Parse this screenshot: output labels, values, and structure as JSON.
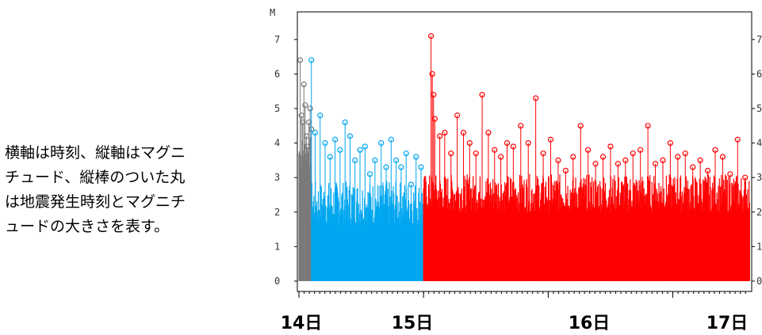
{
  "caption": "横軸は時刻、縦軸はマグニ\nチュード、縦棒のついた丸\nは地震発生時刻とマグニチ\nュードの大きさを表す。",
  "chart_data": {
    "type": "scatter",
    "title": "",
    "ylabel": "M",
    "xlabel": "",
    "ylim": [
      -0.3,
      7.8
    ],
    "yticks": [
      "0",
      "1",
      "2",
      "3",
      "4",
      "5",
      "6",
      "7"
    ],
    "right_yticks": [
      "0",
      "1",
      "2",
      "3",
      "4",
      "5",
      "6",
      "7"
    ],
    "x_unit": "day",
    "xlim": [
      14.0,
      17.62
    ],
    "x_day_labels": [
      {
        "day": 14,
        "label": "14日"
      },
      {
        "day": 15,
        "label": "15日"
      },
      {
        "day": 16,
        "label": "16日"
      },
      {
        "day": 17,
        "label": "17日"
      }
    ],
    "colors": {
      "early": "#7a7a7a",
      "middle": "#00a6f0",
      "late": "#ff0000"
    },
    "series": [
      {
        "color": "early",
        "x": [
          14.01,
          14.02,
          14.03,
          14.04,
          14.05,
          14.06,
          14.07,
          14.08,
          14.09,
          14.1
        ],
        "values": [
          6.4,
          4.8,
          4.6,
          5.7,
          5.1,
          4.2,
          3.9,
          4.6,
          5.0,
          4.4
        ]
      },
      {
        "color": "middle",
        "x": [
          14.1,
          14.13,
          14.17,
          14.21,
          14.25,
          14.29,
          14.33,
          14.37,
          14.41,
          14.45,
          14.49,
          14.53,
          14.57,
          14.61,
          14.66,
          14.7,
          14.74,
          14.78,
          14.82,
          14.86,
          14.9,
          14.94,
          14.98
        ],
        "values": [
          6.4,
          4.3,
          4.8,
          4.0,
          3.6,
          4.1,
          3.8,
          4.6,
          4.2,
          3.5,
          3.8,
          3.9,
          3.1,
          3.5,
          4.0,
          3.3,
          4.1,
          3.5,
          3.3,
          3.7,
          2.8,
          3.6,
          3.3
        ]
      },
      {
        "color": "late",
        "x": [
          15.06,
          15.07,
          15.08,
          15.09,
          15.13,
          15.17,
          15.22,
          15.27,
          15.32,
          15.37,
          15.42,
          15.47,
          15.52,
          15.57,
          15.62,
          15.67,
          15.72,
          15.78,
          15.84,
          15.9,
          15.96,
          16.02,
          16.08,
          16.14,
          16.2,
          16.26,
          16.32,
          16.38,
          16.44,
          16.5,
          16.56,
          16.62,
          16.68,
          16.74,
          16.8,
          16.86,
          16.92,
          16.98,
          17.04,
          17.1,
          17.16,
          17.22,
          17.28,
          17.34,
          17.4,
          17.46,
          17.52,
          17.58
        ],
        "values": [
          7.1,
          6.0,
          5.4,
          4.7,
          4.2,
          4.3,
          3.7,
          4.8,
          4.3,
          4.0,
          3.7,
          5.4,
          4.3,
          3.8,
          3.6,
          4.0,
          3.9,
          4.5,
          4.0,
          5.3,
          3.7,
          4.1,
          3.5,
          3.2,
          3.6,
          4.5,
          3.8,
          3.4,
          3.6,
          3.9,
          3.4,
          3.5,
          3.7,
          3.8,
          4.5,
          3.4,
          3.5,
          4.0,
          3.6,
          3.7,
          3.3,
          3.5,
          3.2,
          3.8,
          3.6,
          3.1,
          4.1,
          3.0
        ]
      }
    ]
  }
}
